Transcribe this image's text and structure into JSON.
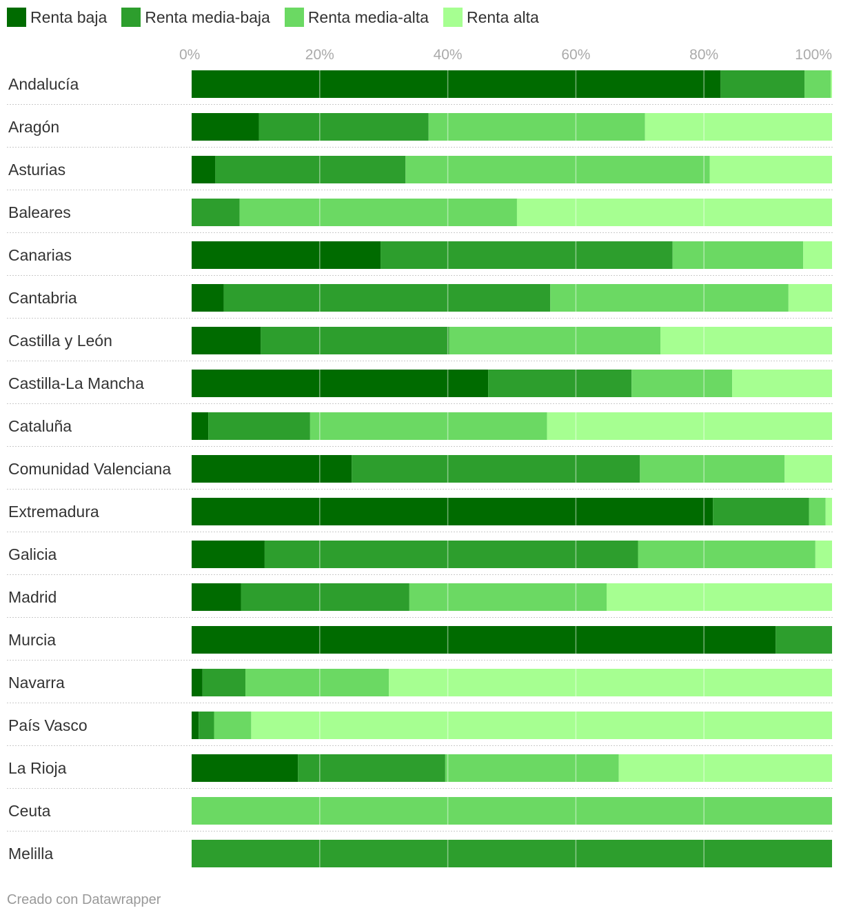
{
  "chart_data": {
    "type": "bar",
    "orientation": "horizontal",
    "stacked": true,
    "percent": true,
    "xlim": [
      0,
      100
    ],
    "ticks": [
      "0%",
      "20%",
      "40%",
      "60%",
      "80%",
      "100%"
    ],
    "legend_position": "top-left",
    "grid": true,
    "series": [
      {
        "name": "Renta baja",
        "color": "#006b00"
      },
      {
        "name": "Renta media-baja",
        "color": "#2d9e2d"
      },
      {
        "name": "Renta media-alta",
        "color": "#6bd963"
      },
      {
        "name": "Renta alta",
        "color": "#a6ff91"
      }
    ],
    "categories": [
      "Andalucía",
      "Aragón",
      "Asturias",
      "Baleares",
      "Canarias",
      "Cantabria",
      "Castilla y León",
      "Castilla-La Mancha",
      "Cataluña",
      "Comunidad Valenciana",
      "Extremadura",
      "Galicia",
      "Madrid",
      "Murcia",
      "Navarra",
      "País Vasco",
      "La Rioja",
      "Ceuta",
      "Melilla"
    ],
    "values": [
      [
        82.6,
        13.1,
        4.1,
        0.2
      ],
      [
        10.5,
        26.5,
        33.8,
        29.2
      ],
      [
        3.7,
        29.7,
        47.5,
        19.1
      ],
      [
        0,
        7.5,
        43.3,
        49.2
      ],
      [
        29.5,
        45.6,
        20.4,
        4.5
      ],
      [
        5.0,
        51.0,
        37.2,
        6.8
      ],
      [
        10.8,
        29.4,
        33.0,
        26.8
      ],
      [
        46.3,
        22.4,
        15.7,
        15.6
      ],
      [
        2.6,
        15.9,
        37.0,
        44.5
      ],
      [
        25.0,
        45.0,
        22.6,
        7.4
      ],
      [
        81.4,
        15.0,
        2.6,
        1.0
      ],
      [
        11.4,
        58.3,
        27.7,
        2.6
      ],
      [
        7.7,
        26.3,
        30.8,
        35.2
      ],
      [
        91.2,
        8.8,
        0,
        0
      ],
      [
        1.7,
        6.7,
        22.4,
        69.2
      ],
      [
        1.1,
        2.4,
        5.8,
        90.7
      ],
      [
        16.6,
        23.0,
        27.1,
        33.3
      ],
      [
        0,
        0,
        100,
        0
      ],
      [
        0,
        100,
        0,
        0
      ]
    ]
  },
  "credit": "Creado con Datawrapper"
}
